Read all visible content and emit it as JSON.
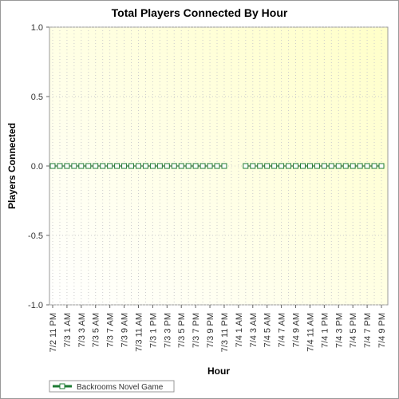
{
  "chart_data": {
    "type": "line",
    "title": "Total Players Connected By Hour",
    "x_label": "Hour",
    "y_label": "Players Connected",
    "categories": [
      "7/2 11 PM",
      null,
      "7/3 1 AM",
      null,
      "7/3 3 AM",
      null,
      "7/3 5 AM",
      null,
      "7/3 7 AM",
      null,
      "7/3 9 AM",
      null,
      "7/3 11 AM",
      null,
      "7/3 1 PM",
      null,
      "7/3 3 PM",
      null,
      "7/3 5 PM",
      null,
      "7/3 7 PM",
      null,
      "7/3 9 PM",
      null,
      "7/3 11 PM",
      null,
      "7/4 1 AM",
      null,
      "7/4 3 AM",
      null,
      "7/4 5 AM",
      null,
      "7/4 7 AM",
      null,
      "7/4 9 AM",
      null,
      "7/4 11 AM",
      null,
      "7/4 1 PM",
      null,
      "7/4 3 PM",
      null,
      "7/4 5 PM",
      null,
      "7/4 7 PM",
      null,
      "7/4 9 PM"
    ],
    "series": [
      {
        "name": "Backrooms Novel Game",
        "color": "#1e7b34",
        "values": [
          0,
          0,
          0,
          0,
          0,
          0,
          0,
          0,
          0,
          0,
          0,
          0,
          0,
          0,
          0,
          0,
          0,
          0,
          0,
          0,
          0,
          0,
          0,
          0,
          0,
          null,
          null,
          0,
          0,
          0,
          0,
          0,
          0,
          0,
          0,
          0,
          0,
          0,
          0,
          0,
          0,
          0,
          0,
          0,
          0,
          0,
          0
        ]
      }
    ],
    "ylim": [
      -1,
      1
    ],
    "yticks": [
      {
        "value": -1,
        "label": "-1.0"
      },
      {
        "value": -0.5,
        "label": "-0.5"
      },
      {
        "value": 0,
        "label": "0.0"
      },
      {
        "value": 0.5,
        "label": "0.5"
      },
      {
        "value": 1,
        "label": "1.0"
      }
    ],
    "grid": true,
    "legend": "bottom-left"
  }
}
